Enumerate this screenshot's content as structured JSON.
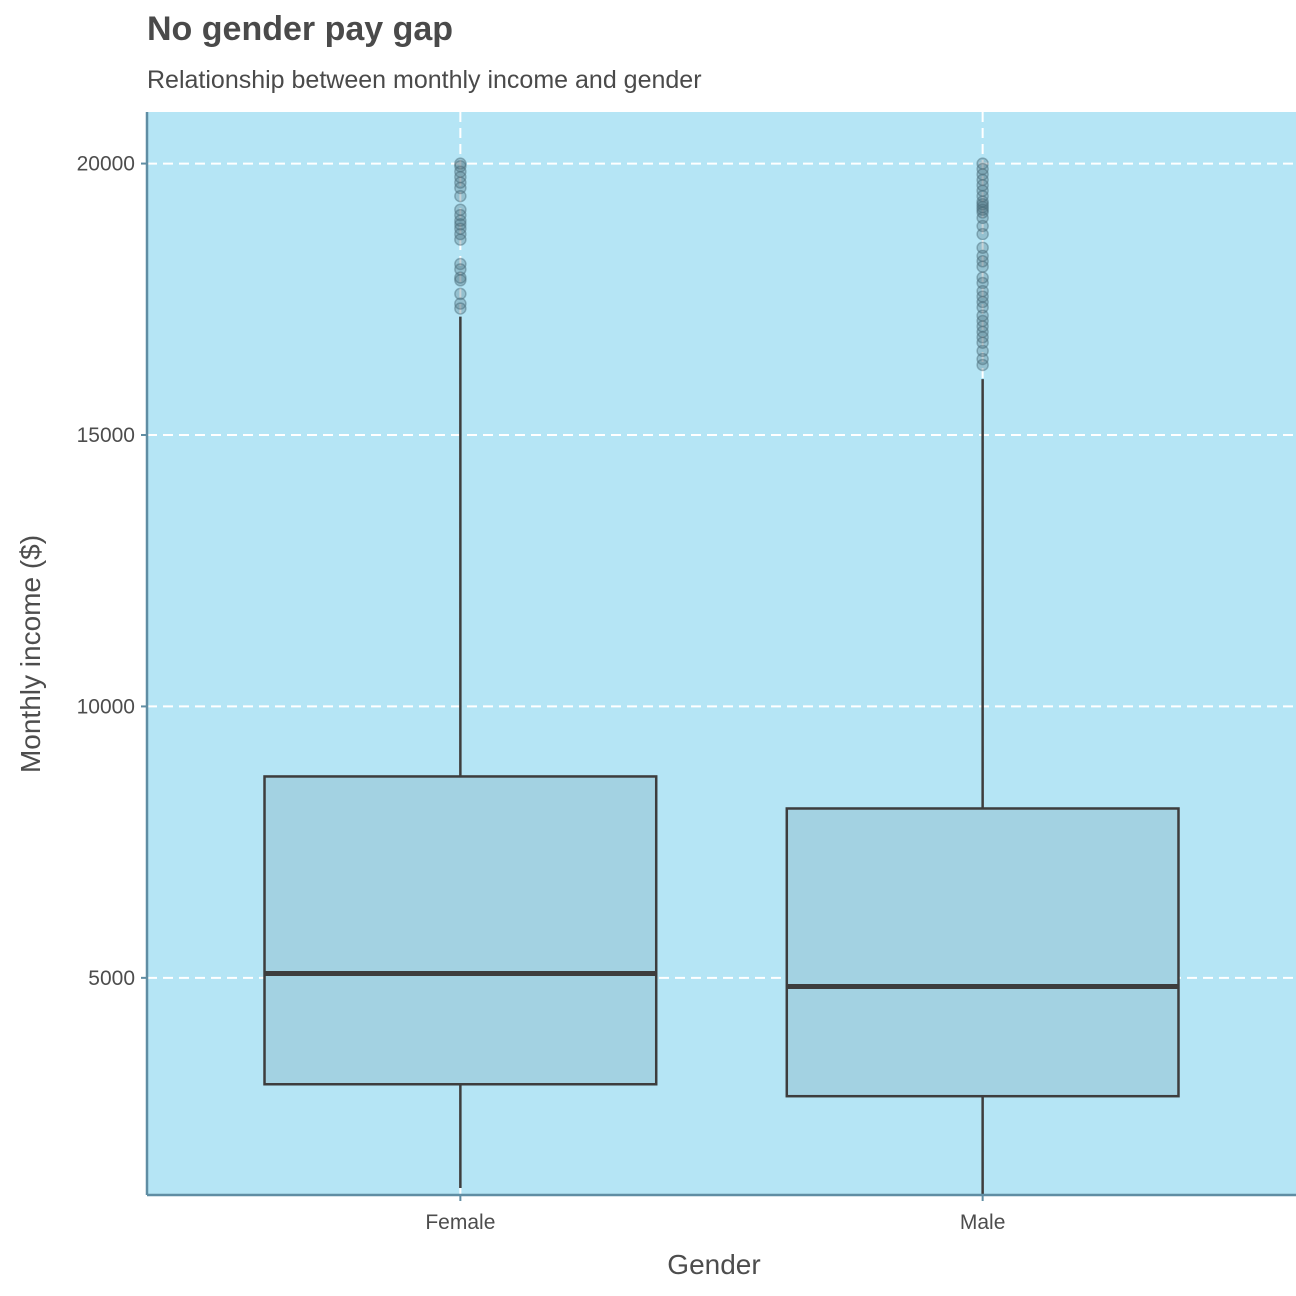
{
  "chart_data": {
    "type": "box",
    "title": "No gender pay gap",
    "subtitle": "Relationship between monthly income and gender",
    "xlabel": "Gender",
    "ylabel": "Monthly income ($)",
    "categories": [
      "Female",
      "Male"
    ],
    "y_ticks": [
      5000,
      10000,
      15000,
      20000
    ],
    "ylim": [
      1000,
      20950
    ],
    "grid": "dashed",
    "boxes": [
      {
        "category": "Female",
        "whisker_low": 1130,
        "q1": 3040,
        "median": 5080,
        "q3": 8710,
        "whisker_high": 17180,
        "outliers": [
          17330,
          17420,
          17600,
          17850,
          17900,
          18050,
          18150,
          18600,
          18700,
          18800,
          18880,
          18950,
          19050,
          19150,
          19400,
          19550,
          19650,
          19750,
          19850,
          19950,
          19999
        ]
      },
      {
        "category": "Male",
        "whisker_low": 1000,
        "q1": 2820,
        "median": 4840,
        "q3": 8120,
        "whisker_high": 16030,
        "outliers": [
          16290,
          16400,
          16550,
          16700,
          16800,
          16900,
          17000,
          17100,
          17200,
          17350,
          17450,
          17550,
          17650,
          17800,
          17900,
          18100,
          18200,
          18300,
          18450,
          18700,
          18850,
          19000,
          19100,
          19150,
          19200,
          19250,
          19300,
          19400,
          19500,
          19600,
          19700,
          19800,
          19900,
          19999
        ]
      }
    ],
    "colors": {
      "panel_bg": "#b5e5f5",
      "box_fill": "#a3d2e2",
      "box_stroke": "#3d3d3d",
      "outlier": "#4a6a78",
      "axis_line": "#5f8da3",
      "grid": "#ffffff"
    }
  }
}
